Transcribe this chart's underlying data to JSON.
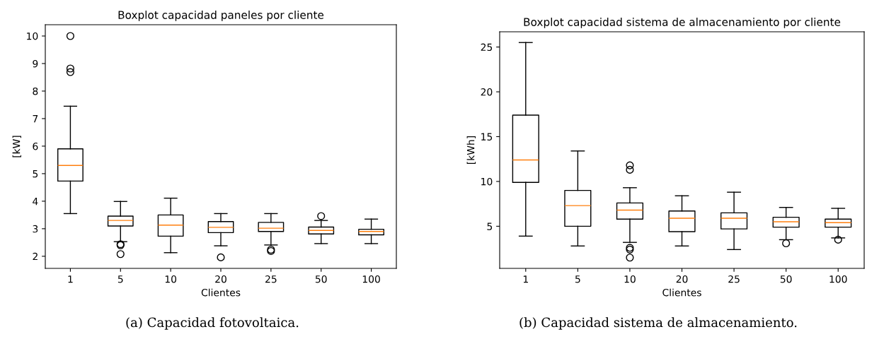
{
  "chart_data": [
    {
      "type": "box",
      "title": "Boxplot capacidad paneles por cliente",
      "xlabel": "Clientes",
      "ylabel": "[kW]",
      "categories": [
        "1",
        "5",
        "10",
        "20",
        "25",
        "50",
        "100"
      ],
      "ylim": [
        1.56,
        10.41
      ],
      "yticks": [
        2,
        3,
        4,
        5,
        6,
        7,
        8,
        9,
        10
      ],
      "grid": false,
      "marker": "circle",
      "annotations": [
        "(a) Capacidad fotovoltaica."
      ],
      "boxes": [
        {
          "low": 3.55,
          "q1": 4.73,
          "median": 5.3,
          "q3": 5.9,
          "high": 7.45,
          "outliers": [
            10.0,
            8.82,
            8.69
          ]
        },
        {
          "low": 2.53,
          "q1": 3.1,
          "median": 3.3,
          "q3": 3.46,
          "high": 3.99,
          "outliers": [
            2.44,
            2.4,
            2.08
          ]
        },
        {
          "low": 2.13,
          "q1": 2.73,
          "median": 3.13,
          "q3": 3.5,
          "high": 4.11
        },
        {
          "low": 2.38,
          "q1": 2.86,
          "median": 3.05,
          "q3": 3.26,
          "high": 3.55,
          "outliers": [
            1.96
          ]
        },
        {
          "low": 2.41,
          "q1": 2.9,
          "median": 3.02,
          "q3": 3.23,
          "high": 3.55,
          "outliers": [
            2.24,
            2.19
          ]
        },
        {
          "low": 2.46,
          "q1": 2.81,
          "median": 2.94,
          "q3": 3.06,
          "high": 3.3,
          "outliers": [
            3.46
          ]
        },
        {
          "low": 2.46,
          "q1": 2.78,
          "median": 2.9,
          "q3": 2.98,
          "high": 3.35
        }
      ]
    },
    {
      "type": "box",
      "title": "Boxplot capacidad sistema de almacenamiento por cliente",
      "xlabel": "Clientes",
      "ylabel": "[kWh]",
      "categories": [
        "1",
        "5",
        "10",
        "20",
        "25",
        "50",
        "100"
      ],
      "ylim": [
        0.3,
        26.7
      ],
      "yticks": [
        5,
        10,
        15,
        20,
        25
      ],
      "grid": false,
      "marker": "circle",
      "annotations": [
        "(b) Capacidad sistema de almacenamiento."
      ],
      "boxes": [
        {
          "low": 3.9,
          "q1": 9.9,
          "median": 12.4,
          "q3": 17.4,
          "high": 25.5
        },
        {
          "low": 2.8,
          "q1": 5.0,
          "median": 7.3,
          "q3": 9.0,
          "high": 13.4
        },
        {
          "low": 3.2,
          "q1": 5.8,
          "median": 6.8,
          "q3": 7.6,
          "high": 9.3,
          "outliers": [
            11.8,
            11.3,
            2.6,
            2.4,
            1.5
          ]
        },
        {
          "low": 2.8,
          "q1": 4.4,
          "median": 5.9,
          "q3": 6.7,
          "high": 8.4
        },
        {
          "low": 2.4,
          "q1": 4.7,
          "median": 5.9,
          "q3": 6.5,
          "high": 8.8
        },
        {
          "low": 3.5,
          "q1": 4.9,
          "median": 5.5,
          "q3": 6.0,
          "high": 7.1,
          "outliers": [
            3.1
          ]
        },
        {
          "low": 3.7,
          "q1": 4.9,
          "median": 5.4,
          "q3": 5.8,
          "high": 7.0,
          "outliers": [
            3.5
          ]
        }
      ]
    }
  ]
}
